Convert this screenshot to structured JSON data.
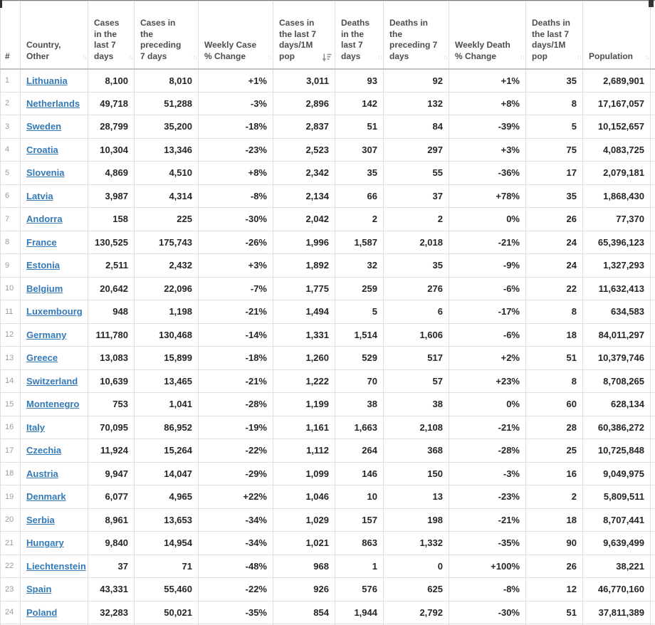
{
  "page": {
    "kind": "weekly-trend-country-table"
  },
  "icons": {
    "sort_both": "↑↓",
    "sort_desc": "sort-amount-down-icon"
  },
  "colors": {
    "link": "#337ab7",
    "header_text": "#4d4d4d",
    "cell_text": "#262626",
    "grid_line": "#e0e0e0",
    "header_underline": "#c2c2c2",
    "sort_icon_inactive": "#d8d8d8",
    "sort_icon_active": "#8f8f8f"
  },
  "table": {
    "columns": [
      {
        "key": "rank",
        "label": "#",
        "sort": "none"
      },
      {
        "key": "country",
        "label": "Country, Other",
        "sort": "both"
      },
      {
        "key": "cases7",
        "label": "Cases in the last 7 days",
        "sort": "both"
      },
      {
        "key": "casesPrev7",
        "label": "Cases in the preceding 7 days",
        "sort": "both"
      },
      {
        "key": "weeklyCaseChange",
        "label": "Weekly Case % Change",
        "sort": "both"
      },
      {
        "key": "cases7per1m",
        "label": "Cases in the last 7 days/1M pop",
        "sort": "desc"
      },
      {
        "key": "deaths7",
        "label": "Deaths in the last 7 days",
        "sort": "both"
      },
      {
        "key": "deathsPrev7",
        "label": "Deaths in the preceding 7 days",
        "sort": "both"
      },
      {
        "key": "weeklyDeathChange",
        "label": "Weekly Death % Change",
        "sort": "both"
      },
      {
        "key": "deaths7per1m",
        "label": "Deaths in the last 7 days/1M pop",
        "sort": "both"
      },
      {
        "key": "population",
        "label": "Population",
        "sort": "both"
      }
    ],
    "rows": [
      {
        "rank": "1",
        "country": "Lithuania",
        "values": [
          "8,100",
          "8,010",
          "+1%",
          "3,011",
          "93",
          "92",
          "+1%",
          "35",
          "2,689,901"
        ]
      },
      {
        "rank": "2",
        "country": "Netherlands",
        "values": [
          "49,718",
          "51,288",
          "-3%",
          "2,896",
          "142",
          "132",
          "+8%",
          "8",
          "17,167,057"
        ]
      },
      {
        "rank": "3",
        "country": "Sweden",
        "values": [
          "28,799",
          "35,200",
          "-18%",
          "2,837",
          "51",
          "84",
          "-39%",
          "5",
          "10,152,657"
        ]
      },
      {
        "rank": "4",
        "country": "Croatia",
        "values": [
          "10,304",
          "13,346",
          "-23%",
          "2,523",
          "307",
          "297",
          "+3%",
          "75",
          "4,083,725"
        ]
      },
      {
        "rank": "5",
        "country": "Slovenia",
        "values": [
          "4,869",
          "4,510",
          "+8%",
          "2,342",
          "35",
          "55",
          "-36%",
          "17",
          "2,079,181"
        ]
      },
      {
        "rank": "6",
        "country": "Latvia",
        "values": [
          "3,987",
          "4,314",
          "-8%",
          "2,134",
          "66",
          "37",
          "+78%",
          "35",
          "1,868,430"
        ]
      },
      {
        "rank": "7",
        "country": "Andorra",
        "values": [
          "158",
          "225",
          "-30%",
          "2,042",
          "2",
          "2",
          "0%",
          "26",
          "77,370"
        ]
      },
      {
        "rank": "8",
        "country": "France",
        "values": [
          "130,525",
          "175,743",
          "-26%",
          "1,996",
          "1,587",
          "2,018",
          "-21%",
          "24",
          "65,396,123"
        ]
      },
      {
        "rank": "9",
        "country": "Estonia",
        "values": [
          "2,511",
          "2,432",
          "+3%",
          "1,892",
          "32",
          "35",
          "-9%",
          "24",
          "1,327,293"
        ]
      },
      {
        "rank": "10",
        "country": "Belgium",
        "values": [
          "20,642",
          "22,096",
          "-7%",
          "1,775",
          "259",
          "276",
          "-6%",
          "22",
          "11,632,413"
        ]
      },
      {
        "rank": "11",
        "country": "Luxembourg",
        "values": [
          "948",
          "1,198",
          "-21%",
          "1,494",
          "5",
          "6",
          "-17%",
          "8",
          "634,583"
        ]
      },
      {
        "rank": "12",
        "country": "Germany",
        "values": [
          "111,780",
          "130,468",
          "-14%",
          "1,331",
          "1,514",
          "1,606",
          "-6%",
          "18",
          "84,011,297"
        ]
      },
      {
        "rank": "13",
        "country": "Greece",
        "values": [
          "13,083",
          "15,899",
          "-18%",
          "1,260",
          "529",
          "517",
          "+2%",
          "51",
          "10,379,746"
        ]
      },
      {
        "rank": "14",
        "country": "Switzerland",
        "values": [
          "10,639",
          "13,465",
          "-21%",
          "1,222",
          "70",
          "57",
          "+23%",
          "8",
          "8,708,265"
        ]
      },
      {
        "rank": "15",
        "country": "Montenegro",
        "values": [
          "753",
          "1,041",
          "-28%",
          "1,199",
          "38",
          "38",
          "0%",
          "60",
          "628,134"
        ]
      },
      {
        "rank": "16",
        "country": "Italy",
        "values": [
          "70,095",
          "86,952",
          "-19%",
          "1,161",
          "1,663",
          "2,108",
          "-21%",
          "28",
          "60,386,272"
        ]
      },
      {
        "rank": "17",
        "country": "Czechia",
        "values": [
          "11,924",
          "15,264",
          "-22%",
          "1,112",
          "264",
          "368",
          "-28%",
          "25",
          "10,725,848"
        ]
      },
      {
        "rank": "18",
        "country": "Austria",
        "values": [
          "9,947",
          "14,047",
          "-29%",
          "1,099",
          "146",
          "150",
          "-3%",
          "16",
          "9,049,975"
        ]
      },
      {
        "rank": "19",
        "country": "Denmark",
        "values": [
          "6,077",
          "4,965",
          "+22%",
          "1,046",
          "10",
          "13",
          "-23%",
          "2",
          "5,809,511"
        ]
      },
      {
        "rank": "20",
        "country": "Serbia",
        "values": [
          "8,961",
          "13,653",
          "-34%",
          "1,029",
          "157",
          "198",
          "-21%",
          "18",
          "8,707,441"
        ]
      },
      {
        "rank": "21",
        "country": "Hungary",
        "values": [
          "9,840",
          "14,954",
          "-34%",
          "1,021",
          "863",
          "1,332",
          "-35%",
          "90",
          "9,639,499"
        ]
      },
      {
        "rank": "22",
        "country": "Liechtenstein",
        "values": [
          "37",
          "71",
          "-48%",
          "968",
          "1",
          "0",
          "+100%",
          "26",
          "38,221"
        ]
      },
      {
        "rank": "23",
        "country": "Spain",
        "values": [
          "43,331",
          "55,460",
          "-22%",
          "926",
          "576",
          "625",
          "-8%",
          "12",
          "46,770,160"
        ]
      },
      {
        "rank": "24",
        "country": "Poland",
        "values": [
          "32,283",
          "50,021",
          "-35%",
          "854",
          "1,944",
          "2,792",
          "-30%",
          "51",
          "37,811,389"
        ]
      }
    ]
  }
}
